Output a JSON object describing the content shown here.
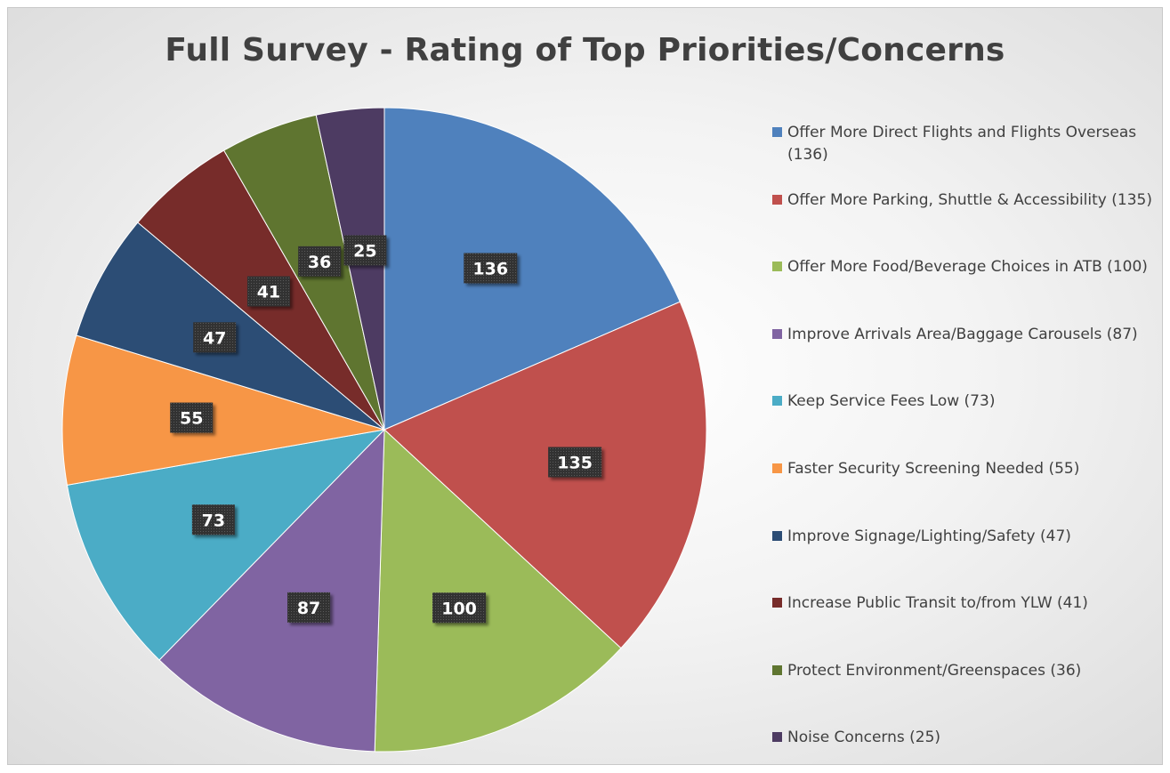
{
  "chart_data": {
    "type": "pie",
    "title": "Full Survey - Rating of Top Priorities/Concerns",
    "categories": [
      "Offer More Direct Flights and Flights Overseas (136)",
      "Offer More Parking, Shuttle & Accessibility (135)",
      "Offer More Food/Beverage Choices in ATB (100)",
      "Improve Arrivals Area/Baggage Carousels (87)",
      "Keep Service Fees Low (73)",
      "Faster Security Screening Needed (55)",
      "Improve Signage/Lighting/Safety (47)",
      "Increase Public Transit to/from YLW (41)",
      "Protect Environment/Greenspaces (36)",
      "Noise Concerns (25)"
    ],
    "values": [
      136,
      135,
      100,
      87,
      73,
      55,
      47,
      41,
      36,
      25
    ],
    "colors": [
      "#4f81bd",
      "#c0504d",
      "#9bbb59",
      "#8064a2",
      "#4bacc6",
      "#f79646",
      "#2c4d75",
      "#772c2a",
      "#5f7530",
      "#4d3b62"
    ],
    "data_labels": [
      "136",
      "135",
      "100",
      "87",
      "73",
      "55",
      "47",
      "41",
      "36",
      "25"
    ],
    "legend_position": "right",
    "start_angle_deg": 0,
    "direction": "clockwise"
  }
}
